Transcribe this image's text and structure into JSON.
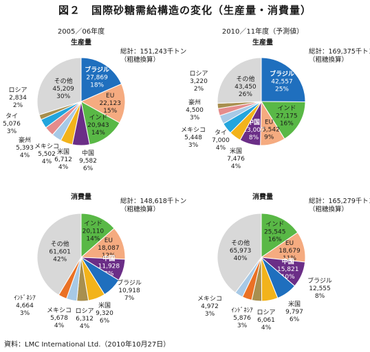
{
  "title": "図２　国際砂糖需給構造の変化（生産量・消費量）",
  "source": "資料：LMC International Ltd.（2010年10月27日）",
  "chart_data": [
    {
      "type": "pie",
      "period": "2005／06年度",
      "subtitle": "生産量",
      "total": "総計：151,243千トン",
      "total_note": "（粗糖換算）",
      "slices": [
        {
          "name": "ブラジル",
          "value": 27869,
          "value_label": "27,869",
          "pct": "18%",
          "color": "#1f6fbe"
        },
        {
          "name": "EU",
          "value": 22123,
          "value_label": "22,123",
          "pct": "15%",
          "color": "#f5ab80"
        },
        {
          "name": "インド",
          "value": 20943,
          "value_label": "20,943",
          "pct": "14%",
          "color": "#59b846"
        },
        {
          "name": "中国",
          "value": 9582,
          "value_label": "9,582",
          "pct": "6%",
          "color": "#6b2e87"
        },
        {
          "name": "米国",
          "value": 6712,
          "value_label": "6,712",
          "pct": "4%",
          "color": "#f2b31b"
        },
        {
          "name": "メキシコ",
          "value": 5502,
          "value_label": "5,502",
          "pct": "4%",
          "color": "#a7c9e6"
        },
        {
          "name": "豪州",
          "value": 5393,
          "value_label": "5,393",
          "pct": "4%",
          "color": "#e58c8c"
        },
        {
          "name": "タイ",
          "value": 5076,
          "value_label": "5,076",
          "pct": "3%",
          "color": "#23a5dd"
        },
        {
          "name": "ロシア",
          "value": 2834,
          "value_label": "2,834",
          "pct": "2%",
          "color": "#a88f4f"
        },
        {
          "name": "その他",
          "value": 45209,
          "value_label": "45,209",
          "pct": "30%",
          "color": "#d8d8d8"
        }
      ]
    },
    {
      "type": "pie",
      "period": "2010／11年度（予測値）",
      "subtitle": "生産量",
      "total": "総計：169,375千トン",
      "total_note": "（粗糖換算）",
      "slices": [
        {
          "name": "ブラジル",
          "value": 42557,
          "value_label": "42,557",
          "pct": "25%",
          "color": "#1f6fbe"
        },
        {
          "name": "インド",
          "value": 27175,
          "value_label": "27,175",
          "pct": "16%",
          "color": "#59b846"
        },
        {
          "name": "EU",
          "value": 15542,
          "value_label": "15,542",
          "pct": "9%",
          "color": "#f5ab80"
        },
        {
          "name": "中国",
          "value": 13007,
          "value_label": "13,007",
          "pct": "8%",
          "color": "#6b2e87"
        },
        {
          "name": "米国",
          "value": 7476,
          "value_label": "7,476",
          "pct": "4%",
          "color": "#f2b31b"
        },
        {
          "name": "タイ",
          "value": 7000,
          "value_label": "7,000",
          "pct": "4%",
          "color": "#23a5dd"
        },
        {
          "name": "メキシコ",
          "value": 5448,
          "value_label": "5,448",
          "pct": "3%",
          "color": "#a7c9e6"
        },
        {
          "name": "豪州",
          "value": 4500,
          "value_label": "4,500",
          "pct": "3%",
          "color": "#e58c8c"
        },
        {
          "name": "ロシア",
          "value": 3220,
          "value_label": "3,220",
          "pct": "2%",
          "color": "#a88f4f"
        },
        {
          "name": "その他",
          "value": 43450,
          "value_label": "43,450",
          "pct": "26%",
          "color": "#d8d8d8"
        }
      ]
    },
    {
      "type": "pie",
      "period": "",
      "subtitle": "消費量",
      "total": "総計：148,618千トン",
      "total_note": "（粗糖換算）",
      "slices": [
        {
          "name": "インド",
          "value": 20110,
          "value_label": "20,110",
          "pct": "14%",
          "color": "#59b846"
        },
        {
          "name": "EU",
          "value": 18087,
          "value_label": "18,087",
          "pct": "12%",
          "color": "#f5ab80"
        },
        {
          "name": "中国",
          "value": 11928,
          "value_label": "11,928",
          "pct": "8%",
          "color": "#6b2e87"
        },
        {
          "name": "ブラジル",
          "value": 10918,
          "value_label": "10,918",
          "pct": "7%",
          "color": "#1f6fbe"
        },
        {
          "name": "米国",
          "value": 9320,
          "value_label": "9,320",
          "pct": "6%",
          "color": "#f2b31b"
        },
        {
          "name": "ロシア",
          "value": 6312,
          "value_label": "6,312",
          "pct": "4%",
          "color": "#a88f4f"
        },
        {
          "name": "メキシコ",
          "value": 5678,
          "value_label": "5,678",
          "pct": "4%",
          "color": "#a7c9e6"
        },
        {
          "name": "ｲﾝﾄﾞﾈｼｱ",
          "value": 4664,
          "value_label": "4,664",
          "pct": "3%",
          "color": "#ea7125"
        },
        {
          "name": "その他",
          "value": 61601,
          "value_label": "61,601",
          "pct": "42%",
          "color": "#d8d8d8"
        }
      ]
    },
    {
      "type": "pie",
      "period": "",
      "subtitle": "消費量",
      "total": "総計：165,279千トン",
      "total_note": "（粗糖換算）",
      "slices": [
        {
          "name": "インド",
          "value": 25545,
          "value_label": "25,545",
          "pct": "16%",
          "color": "#59b846"
        },
        {
          "name": "EU",
          "value": 18679,
          "value_label": "18,679",
          "pct": "11%",
          "color": "#f5ab80"
        },
        {
          "name": "中国",
          "value": 15821,
          "value_label": "15,821",
          "pct": "10%",
          "color": "#6b2e87"
        },
        {
          "name": "ブラジル",
          "value": 12555,
          "value_label": "12,555",
          "pct": "8%",
          "color": "#1f6fbe"
        },
        {
          "name": "米国",
          "value": 9797,
          "value_label": "9,797",
          "pct": "6%",
          "color": "#f2b31b"
        },
        {
          "name": "ロシア",
          "value": 6061,
          "value_label": "6,061",
          "pct": "4%",
          "color": "#a88f4f"
        },
        {
          "name": "ｲﾝﾄﾞﾈｼｱ",
          "value": 5876,
          "value_label": "5,876",
          "pct": "3%",
          "color": "#ea7125"
        },
        {
          "name": "メキシコ",
          "value": 4972,
          "value_label": "4,972",
          "pct": "3%",
          "color": "#a7c9e6"
        },
        {
          "name": "その他",
          "value": 65973,
          "value_label": "65,973",
          "pct": "40%",
          "color": "#d8d8d8"
        }
      ]
    }
  ]
}
